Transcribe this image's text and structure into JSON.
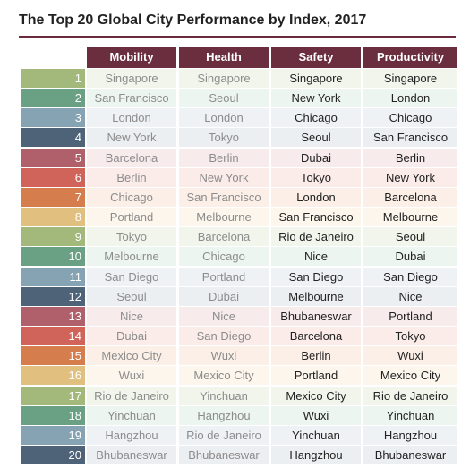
{
  "title": "The Top 20 Global City Performance by Index, 2017",
  "headers": {
    "mobility": "Mobility",
    "health": "Health",
    "safety": "Safety",
    "productivity": "Productivity"
  },
  "colors": {
    "header_bg": "#6b2e3e",
    "title_rule": "#6a2c3c",
    "rank_colors": [
      "#a3b97b",
      "#6aa083",
      "#86a3b3",
      "#4e6378",
      "#b0606a",
      "#d0645a",
      "#d67d4d",
      "#e1c07f"
    ],
    "row_tints": [
      "#f1f5ec",
      "#edf5f0",
      "#eef2f5",
      "#eceff2",
      "#f8ebec",
      "#fbecea",
      "#fbefe8",
      "#fcf6ec"
    ]
  },
  "rows": [
    {
      "rank": "1",
      "mobility": "Singapore",
      "health": "Singapore",
      "safety": "Singapore",
      "productivity": "Singapore"
    },
    {
      "rank": "2",
      "mobility": "San Francisco",
      "health": "Seoul",
      "safety": "New York",
      "productivity": "London"
    },
    {
      "rank": "3",
      "mobility": "London",
      "health": "London",
      "safety": "Chicago",
      "productivity": "Chicago"
    },
    {
      "rank": "4",
      "mobility": "New York",
      "health": "Tokyo",
      "safety": "Seoul",
      "productivity": "San Francisco"
    },
    {
      "rank": "5",
      "mobility": "Barcelona",
      "health": "Berlin",
      "safety": "Dubai",
      "productivity": "Berlin"
    },
    {
      "rank": "6",
      "mobility": "Berlin",
      "health": "New York",
      "safety": "Tokyo",
      "productivity": "New York"
    },
    {
      "rank": "7",
      "mobility": "Chicago",
      "health": "San Francisco",
      "safety": "London",
      "productivity": "Barcelona"
    },
    {
      "rank": "8",
      "mobility": "Portland",
      "health": "Melbourne",
      "safety": "San Francisco",
      "productivity": "Melbourne"
    },
    {
      "rank": "9",
      "mobility": "Tokyo",
      "health": "Barcelona",
      "safety": "Rio de Janeiro",
      "productivity": "Seoul"
    },
    {
      "rank": "10",
      "mobility": "Melbourne",
      "health": "Chicago",
      "safety": "Nice",
      "productivity": "Dubai"
    },
    {
      "rank": "11",
      "mobility": "San Diego",
      "health": "Portland",
      "safety": "San Diego",
      "productivity": "San Diego"
    },
    {
      "rank": "12",
      "mobility": "Seoul",
      "health": "Dubai",
      "safety": "Melbourne",
      "productivity": "Nice"
    },
    {
      "rank": "13",
      "mobility": "Nice",
      "health": "Nice",
      "safety": "Bhubaneswar",
      "productivity": "Portland"
    },
    {
      "rank": "14",
      "mobility": "Dubai",
      "health": "San Diego",
      "safety": "Barcelona",
      "productivity": "Tokyo"
    },
    {
      "rank": "15",
      "mobility": "Mexico City",
      "health": "Wuxi",
      "safety": "Berlin",
      "productivity": "Wuxi"
    },
    {
      "rank": "16",
      "mobility": "Wuxi",
      "health": "Mexico City",
      "safety": "Portland",
      "productivity": "Mexico City"
    },
    {
      "rank": "17",
      "mobility": "Rio de Janeiro",
      "health": "Yinchuan",
      "safety": "Mexico City",
      "productivity": "Rio de Janeiro"
    },
    {
      "rank": "18",
      "mobility": "Yinchuan",
      "health": "Hangzhou",
      "safety": "Wuxi",
      "productivity": "Yinchuan"
    },
    {
      "rank": "19",
      "mobility": "Hangzhou",
      "health": "Rio de Janeiro",
      "safety": "Yinchuan",
      "productivity": "Hangzhou"
    },
    {
      "rank": "20",
      "mobility": "Bhubaneswar",
      "health": "Bhubaneswar",
      "safety": "Hangzhou",
      "productivity": "Bhubaneswar"
    }
  ]
}
